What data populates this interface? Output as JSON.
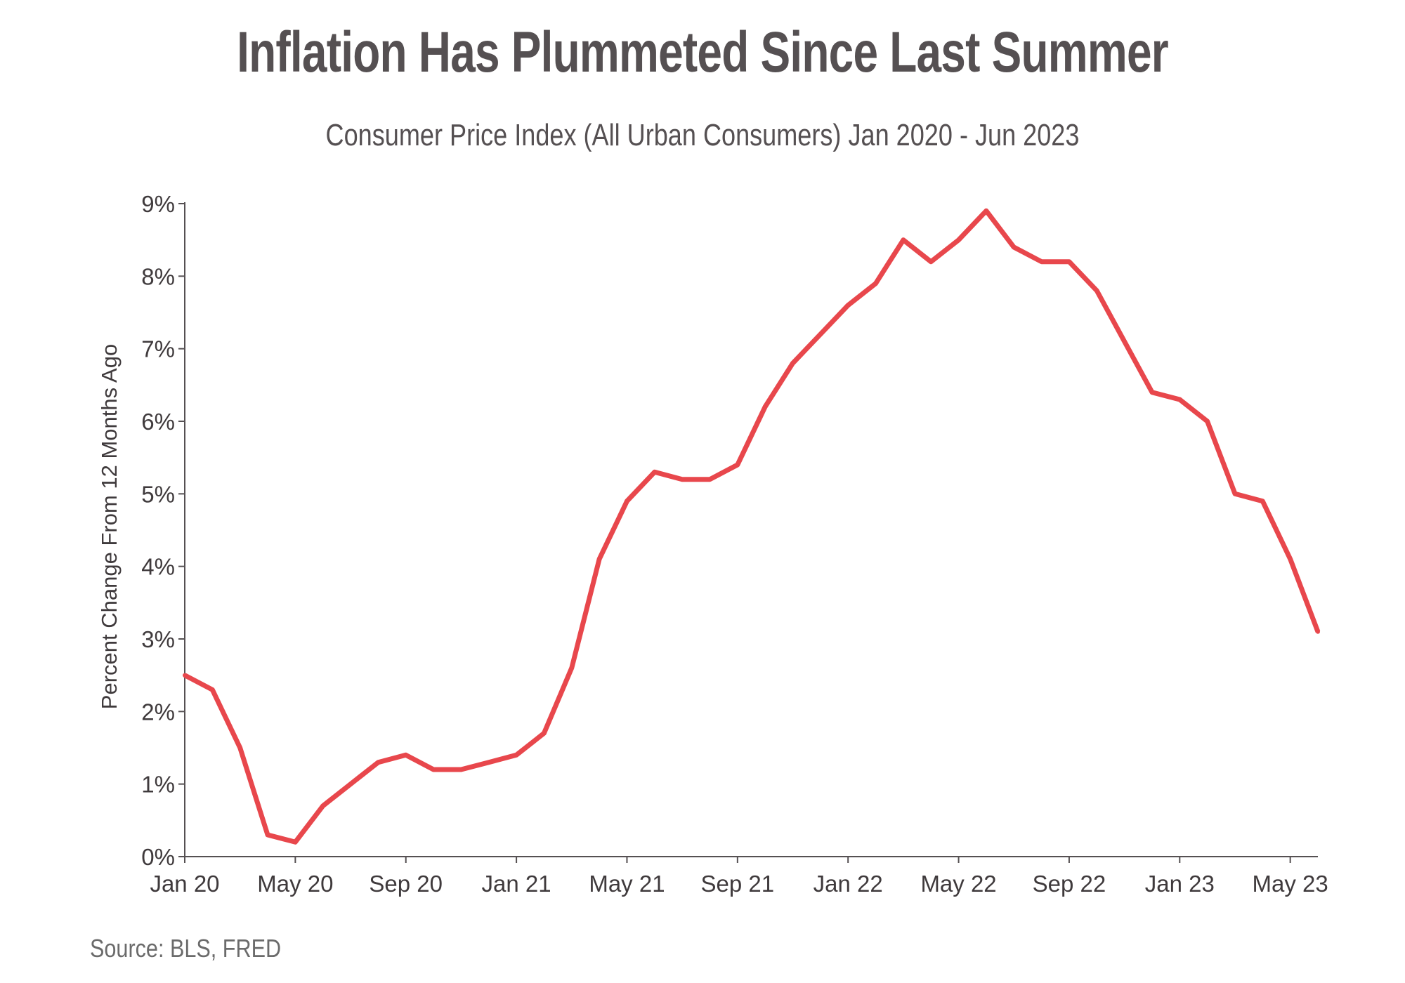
{
  "chart_data": {
    "type": "line",
    "title": "Inflation Has Plummeted Since Last Summer",
    "subtitle": "Consumer Price Index (All Urban Consumers) Jan 2020 - Jun 2023",
    "ylabel": "Percent Change From 12 Months Ago",
    "xlabel": "",
    "source": "Source: BLS, FRED",
    "ylim": [
      0,
      9
    ],
    "y_ticks": [
      "0%",
      "1%",
      "2%",
      "3%",
      "4%",
      "5%",
      "6%",
      "7%",
      "8%",
      "9%"
    ],
    "x_ticks": [
      {
        "label": "Jan 20",
        "index": 0
      },
      {
        "label": "May 20",
        "index": 4
      },
      {
        "label": "Sep 20",
        "index": 8
      },
      {
        "label": "Jan 21",
        "index": 12
      },
      {
        "label": "May 21",
        "index": 16
      },
      {
        "label": "Sep 21",
        "index": 20
      },
      {
        "label": "Jan 22",
        "index": 24
      },
      {
        "label": "May 22",
        "index": 28
      },
      {
        "label": "Sep 22",
        "index": 32
      },
      {
        "label": "Jan 23",
        "index": 36
      },
      {
        "label": "May 23",
        "index": 40
      }
    ],
    "grid": false,
    "line_color": "#e8474c",
    "x": [
      "2020-01",
      "2020-02",
      "2020-03",
      "2020-04",
      "2020-05",
      "2020-06",
      "2020-07",
      "2020-08",
      "2020-09",
      "2020-10",
      "2020-11",
      "2020-12",
      "2021-01",
      "2021-02",
      "2021-03",
      "2021-04",
      "2021-05",
      "2021-06",
      "2021-07",
      "2021-08",
      "2021-09",
      "2021-10",
      "2021-11",
      "2021-12",
      "2022-01",
      "2022-02",
      "2022-03",
      "2022-04",
      "2022-05",
      "2022-06",
      "2022-07",
      "2022-08",
      "2022-09",
      "2022-10",
      "2022-11",
      "2022-12",
      "2023-01",
      "2023-02",
      "2023-03",
      "2023-04",
      "2023-05",
      "2023-06"
    ],
    "values": [
      2.5,
      2.3,
      1.5,
      0.3,
      0.2,
      0.7,
      1.0,
      1.3,
      1.4,
      1.2,
      1.2,
      1.3,
      1.4,
      1.7,
      2.6,
      4.1,
      4.9,
      5.3,
      5.2,
      5.2,
      5.4,
      6.2,
      6.8,
      7.2,
      7.6,
      7.9,
      8.5,
      8.2,
      8.5,
      8.9,
      8.4,
      8.2,
      8.2,
      7.8,
      7.1,
      6.4,
      6.3,
      6.0,
      5.0,
      4.9,
      4.1,
      3.1
    ]
  }
}
